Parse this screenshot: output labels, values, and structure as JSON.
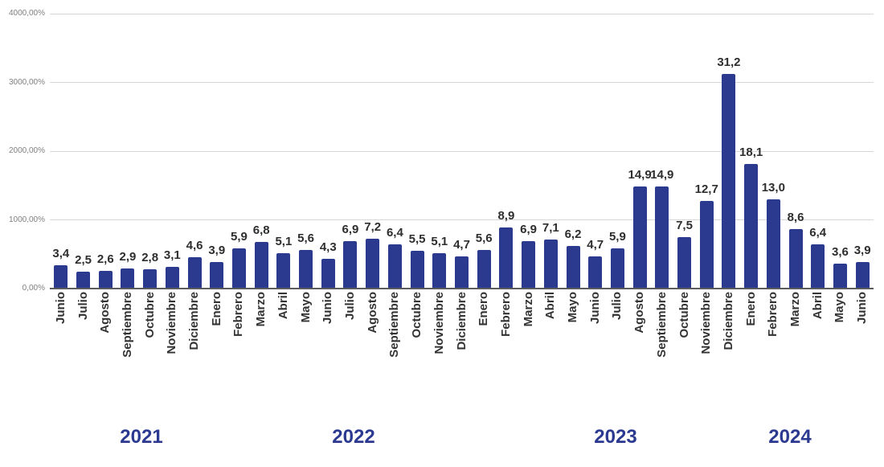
{
  "chart_data": {
    "type": "bar",
    "title": "",
    "xlabel": "",
    "ylabel": "",
    "y_axis": {
      "min": 0,
      "max": 4000,
      "unit": "%",
      "tick_labels": [
        "0,00%",
        "1000,00%",
        "2000,00%",
        "3000,00%",
        "4000,00%"
      ]
    },
    "grid": true,
    "legend": false,
    "bar_value_scale_on_axis": 100,
    "year_groups": [
      {
        "label": "2021",
        "count": 7
      },
      {
        "label": "2022",
        "count": 12
      },
      {
        "label": "2023",
        "count": 12
      },
      {
        "label": "2024",
        "count": 6
      }
    ],
    "points": [
      {
        "month": "Junio",
        "year": "2021",
        "label": "3,4",
        "value": 3.4
      },
      {
        "month": "Julio",
        "year": "2021",
        "label": "2,5",
        "value": 2.5
      },
      {
        "month": "Agosto",
        "year": "2021",
        "label": "2,6",
        "value": 2.6
      },
      {
        "month": "Septiembre",
        "year": "2021",
        "label": "2,9",
        "value": 2.9
      },
      {
        "month": "Octubre",
        "year": "2021",
        "label": "2,8",
        "value": 2.8
      },
      {
        "month": "Noviembre",
        "year": "2021",
        "label": "3,1",
        "value": 3.1
      },
      {
        "month": "Diciembre",
        "year": "2021",
        "label": "4,6",
        "value": 4.6
      },
      {
        "month": "Enero",
        "year": "2022",
        "label": "3,9",
        "value": 3.9
      },
      {
        "month": "Febrero",
        "year": "2022",
        "label": "5,9",
        "value": 5.9
      },
      {
        "month": "Marzo",
        "year": "2022",
        "label": "6,8",
        "value": 6.8
      },
      {
        "month": "Abril",
        "year": "2022",
        "label": "5,1",
        "value": 5.1
      },
      {
        "month": "Mayo",
        "year": "2022",
        "label": "5,6",
        "value": 5.6
      },
      {
        "month": "Junio",
        "year": "2022",
        "label": "4,3",
        "value": 4.3
      },
      {
        "month": "Julio",
        "year": "2022",
        "label": "6,9",
        "value": 6.9
      },
      {
        "month": "Agosto",
        "year": "2022",
        "label": "7,2",
        "value": 7.2
      },
      {
        "month": "Septiembre",
        "year": "2022",
        "label": "6,4",
        "value": 6.4
      },
      {
        "month": "Octubre",
        "year": "2022",
        "label": "5,5",
        "value": 5.5
      },
      {
        "month": "Noviembre",
        "year": "2022",
        "label": "5,1",
        "value": 5.1
      },
      {
        "month": "Diciembre",
        "year": "2022",
        "label": "4,7",
        "value": 4.7
      },
      {
        "month": "Enero",
        "year": "2023",
        "label": "5,6",
        "value": 5.6
      },
      {
        "month": "Febrero",
        "year": "2023",
        "label": "8,9",
        "value": 8.9
      },
      {
        "month": "Marzo",
        "year": "2023",
        "label": "6,9",
        "value": 6.9
      },
      {
        "month": "Abril",
        "year": "2023",
        "label": "7,1",
        "value": 7.1
      },
      {
        "month": "Mayo",
        "year": "2023",
        "label": "6,2",
        "value": 6.2
      },
      {
        "month": "Junio",
        "year": "2023",
        "label": "4,7",
        "value": 4.7
      },
      {
        "month": "Julio",
        "year": "2023",
        "label": "5,9",
        "value": 5.9
      },
      {
        "month": "Agosto",
        "year": "2023",
        "label": "14,9",
        "value": 14.9
      },
      {
        "month": "Septiembre",
        "year": "2023",
        "label": "14,9",
        "value": 14.9
      },
      {
        "month": "Octubre",
        "year": "2023",
        "label": "7,5",
        "value": 7.5
      },
      {
        "month": "Noviembre",
        "year": "2023",
        "label": "12,7",
        "value": 12.7
      },
      {
        "month": "Diciembre",
        "year": "2023",
        "label": "31,2",
        "value": 31.2
      },
      {
        "month": "Enero",
        "year": "2024",
        "label": "18,1",
        "value": 18.1
      },
      {
        "month": "Febrero",
        "year": "2024",
        "label": "13,0",
        "value": 13.0
      },
      {
        "month": "Marzo",
        "year": "2024",
        "label": "8,6",
        "value": 8.6
      },
      {
        "month": "Abril",
        "year": "2024",
        "label": "6,4",
        "value": 6.4
      },
      {
        "month": "Mayo",
        "year": "2024",
        "label": "3,6",
        "value": 3.6
      },
      {
        "month": "Junio",
        "year": "2024",
        "label": "3,9",
        "value": 3.9
      }
    ],
    "colors": {
      "bar": "#2b3a8f",
      "value_label": "#2e2e2e",
      "month_label": "#333333",
      "year_label": "#2b3990",
      "axis_label": "#7f7f7f",
      "gridline": "#d6d6d6",
      "baseline": "#5c5c5c",
      "background": "#ffffff"
    }
  }
}
